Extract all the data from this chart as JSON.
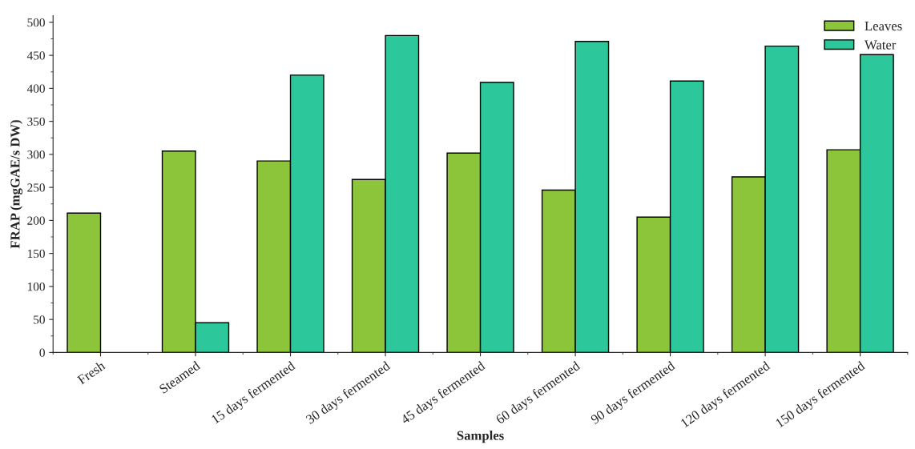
{
  "chart_data": {
    "type": "bar",
    "xlabel": "Samples",
    "ylabel": "FRAP (mgGAE/s DW)",
    "categories": [
      "Fresh",
      "Steamed",
      "15 days fermented",
      "30 days fermented",
      "45 days fermented",
      "60 days fermented",
      "90 days fermented",
      "120 days fermented",
      "150 days fermented"
    ],
    "series": [
      {
        "name": "Leaves",
        "color": "#8cc43a",
        "values": [
          211,
          305,
          290,
          262,
          302,
          246,
          205,
          266,
          307
        ]
      },
      {
        "name": "Water",
        "color": "#2cc79a",
        "values": [
          null,
          45,
          420,
          480,
          409,
          471,
          411,
          464,
          451
        ]
      }
    ],
    "ylim": [
      0,
      510
    ],
    "yticks": [
      0,
      50,
      100,
      150,
      200,
      250,
      300,
      350,
      400,
      450,
      500
    ],
    "grid": false,
    "legend": "top right"
  }
}
